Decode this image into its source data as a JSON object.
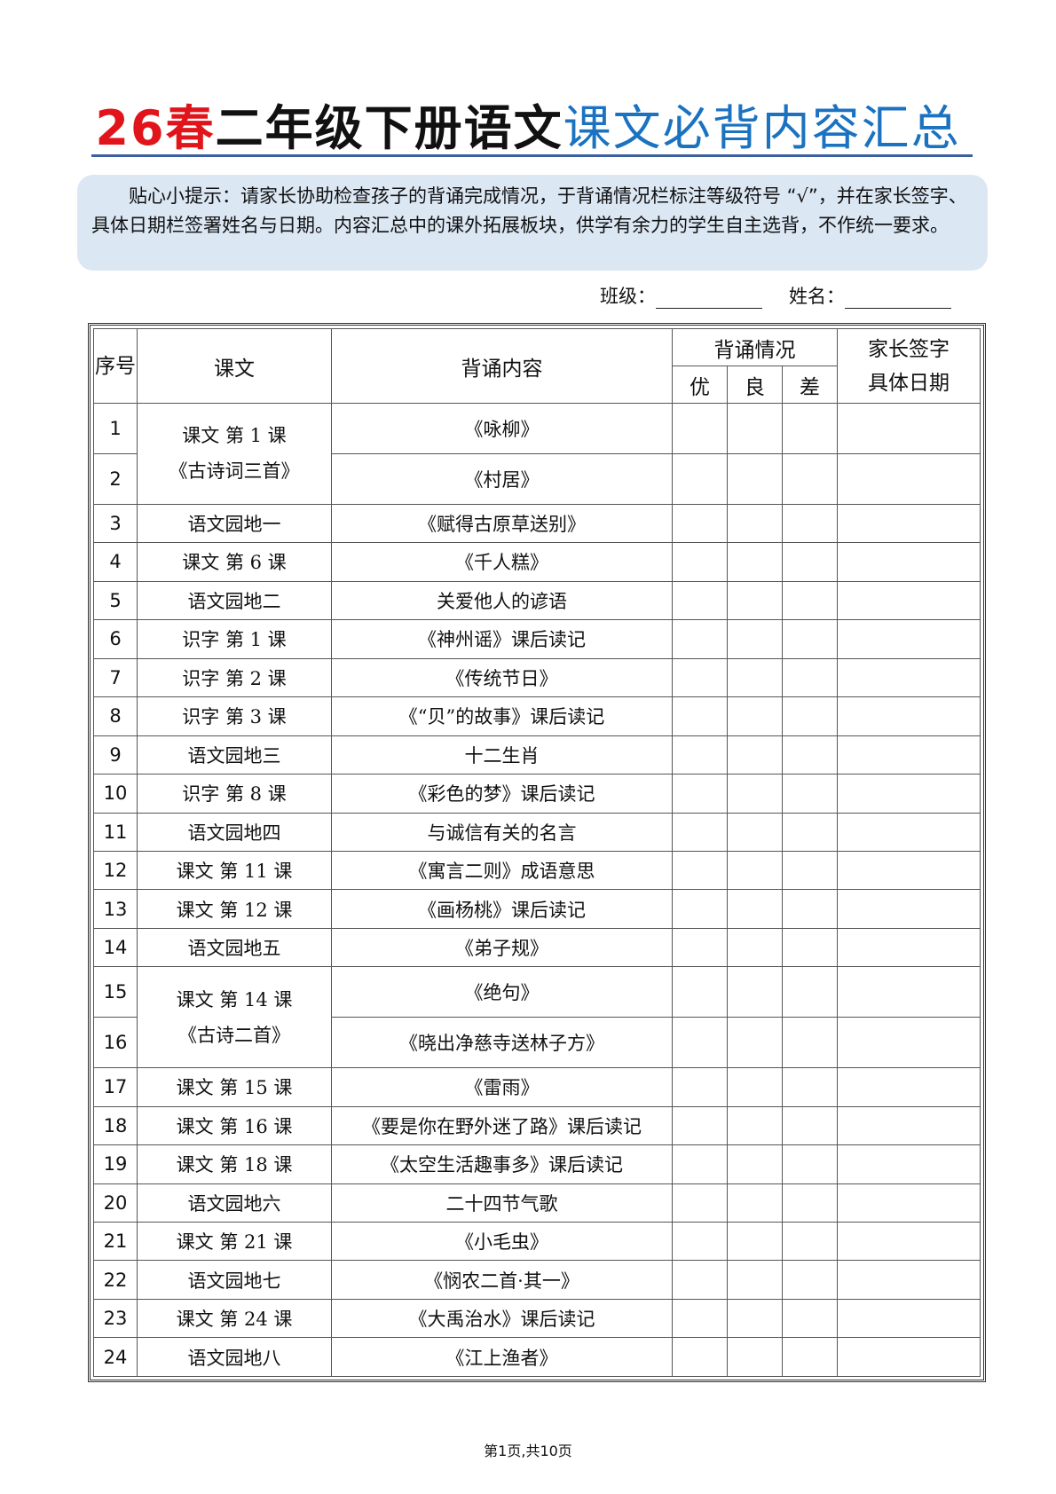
{
  "title": {
    "part1": "26春",
    "part2": "二年级下册语文",
    "part3": "课文必背内容汇总"
  },
  "tip": "贴心小提示：请家长协助检查孩子的背诵完成情况，于背诵情况栏标注等级符号 “√”，并在家长签字、具体日期栏签署姓名与日期。内容汇总中的课外拓展板块，供学有余力的学生自主选背，不作统一要求。",
  "meta": {
    "class_label": "班级：",
    "name_label": "姓名："
  },
  "headers": {
    "no": "序号",
    "lesson": "课文",
    "content": "背诵内容",
    "status": "背诵情况",
    "good": "优",
    "ok": "良",
    "poor": "差",
    "sign1": "家长签字",
    "sign2": "具体日期"
  },
  "rows": [
    {
      "no": "1",
      "lesson": "课文 第 1 课\n《古诗词三首》",
      "span": 2,
      "content": "《咏柳》"
    },
    {
      "no": "2",
      "content": "《村居》"
    },
    {
      "no": "3",
      "lesson": "语文园地一",
      "content": "《赋得古原草送别》"
    },
    {
      "no": "4",
      "lesson": "课文 第 6 课",
      "content": "《千人糕》"
    },
    {
      "no": "5",
      "lesson": "语文园地二",
      "content": "关爱他人的谚语"
    },
    {
      "no": "6",
      "lesson": "识字 第 1 课",
      "content": "《神州谣》课后读记"
    },
    {
      "no": "7",
      "lesson": "识字 第 2 课",
      "content": "《传统节日》"
    },
    {
      "no": "8",
      "lesson": "识字 第 3 课",
      "content": "《“贝”的故事》课后读记"
    },
    {
      "no": "9",
      "lesson": "语文园地三",
      "content": "十二生肖"
    },
    {
      "no": "10",
      "lesson": "识字 第 8 课",
      "content": "《彩色的梦》课后读记"
    },
    {
      "no": "11",
      "lesson": "语文园地四",
      "content": "与诚信有关的名言"
    },
    {
      "no": "12",
      "lesson": "课文 第 11 课",
      "content": "《寓言二则》成语意思"
    },
    {
      "no": "13",
      "lesson": "课文 第 12 课",
      "content": "《画杨桃》课后读记"
    },
    {
      "no": "14",
      "lesson": "语文园地五",
      "content": "《弟子规》"
    },
    {
      "no": "15",
      "lesson": "课文 第 14 课\n《古诗二首》",
      "span": 2,
      "content": "《绝句》"
    },
    {
      "no": "16",
      "content": "《晓出净慈寺送林子方》"
    },
    {
      "no": "17",
      "lesson": "课文 第 15 课",
      "content": "《雷雨》"
    },
    {
      "no": "18",
      "lesson": "课文 第 16 课",
      "content": "《要是你在野外迷了路》课后读记"
    },
    {
      "no": "19",
      "lesson": "课文 第 18 课",
      "content": "《太空生活趣事多》课后读记"
    },
    {
      "no": "20",
      "lesson": "语文园地六",
      "content": "二十四节气歌"
    },
    {
      "no": "21",
      "lesson": "课文 第 21 课",
      "content": "《小毛虫》"
    },
    {
      "no": "22",
      "lesson": "语文园地七",
      "content": "《悯农二首·其一》"
    },
    {
      "no": "23",
      "lesson": "课文 第 24 课",
      "content": "《大禹治水》课后读记"
    },
    {
      "no": "24",
      "lesson": "语文园地八",
      "content": "《江上渔者》"
    }
  ],
  "footer": "第1页,共10页"
}
